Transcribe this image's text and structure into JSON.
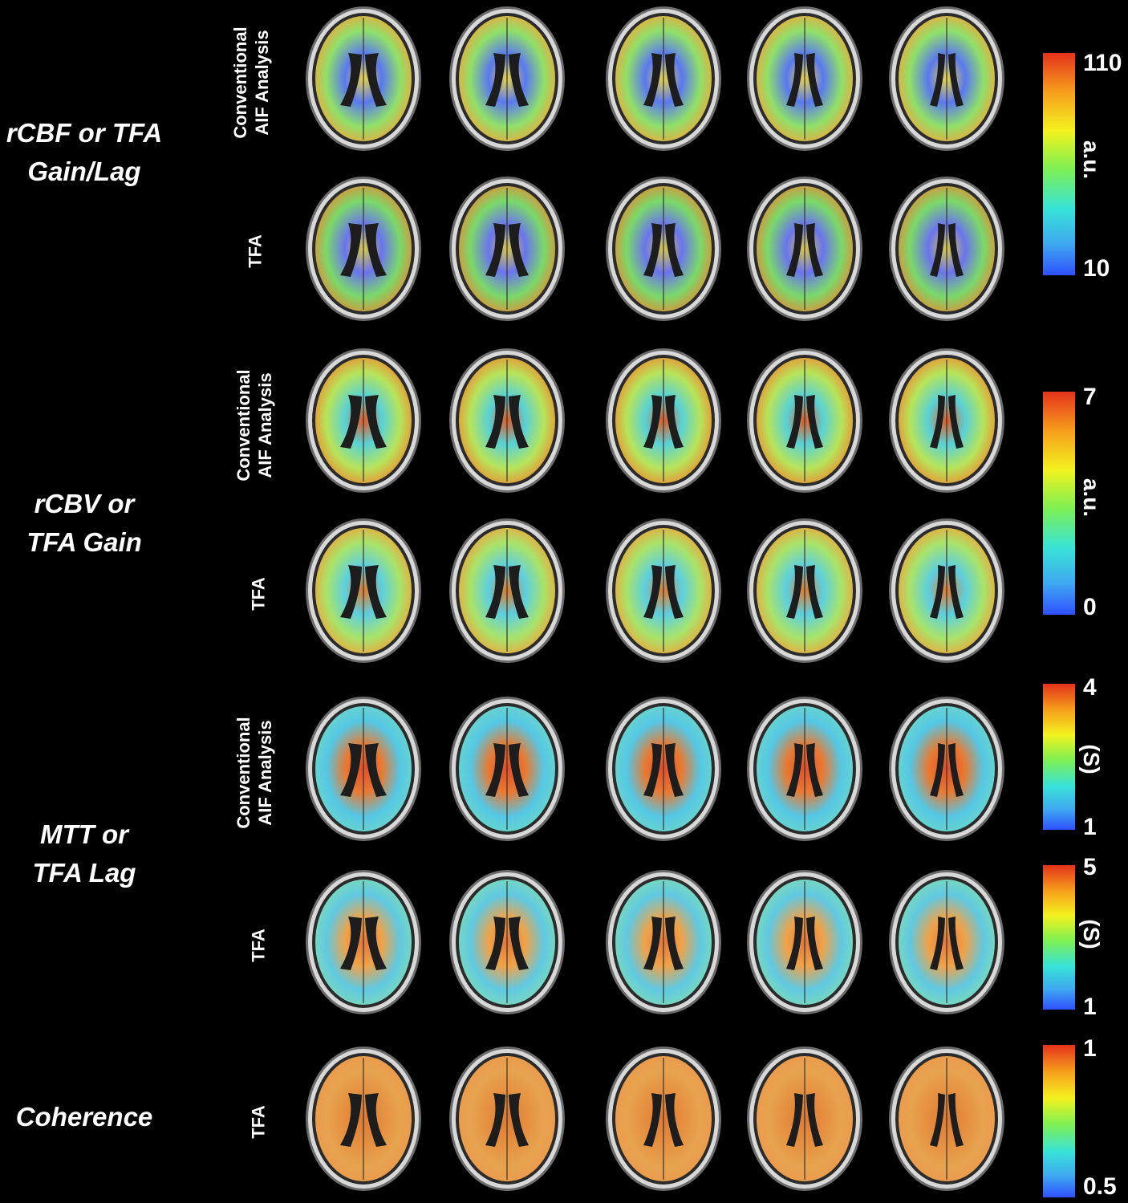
{
  "groups": [
    {
      "label": "rCBF or TFA\nGain/Lag"
    },
    {
      "label": "rCBV or\nTFA Gain"
    },
    {
      "label": "MTT or\nTFA Lag"
    },
    {
      "label": "Coherence"
    }
  ],
  "rows": [
    {
      "label": "Conventional\nAIF Analysis",
      "map": "rcbf-conventional"
    },
    {
      "label": "TFA",
      "map": "rcbf-tfa"
    },
    {
      "label": "Conventional\nAIF Analysis",
      "map": "rcbv-conventional"
    },
    {
      "label": "TFA",
      "map": "rcbv-tfa"
    },
    {
      "label": "Conventional\nAIF Analysis",
      "map": "mtt-conventional"
    },
    {
      "label": "TFA",
      "map": "mtt-tfa"
    },
    {
      "label": "TFA",
      "map": "coherence-tfa"
    }
  ],
  "colorbars": [
    {
      "max": "110",
      "min": "10",
      "unit": "a.u."
    },
    {
      "max": "7",
      "min": "0",
      "unit": "a.u."
    },
    {
      "max": "4",
      "min": "1",
      "unit": "(S)"
    },
    {
      "max": "5",
      "min": "1",
      "unit": "(S)"
    },
    {
      "max": "1",
      "min": "0.5",
      "unit": ""
    }
  ],
  "colormap": [
    "#2f50ff",
    "#3ea8f0",
    "#38e3d8",
    "#7ff052",
    "#f3f21f",
    "#f7a01c",
    "#e4321b"
  ]
}
